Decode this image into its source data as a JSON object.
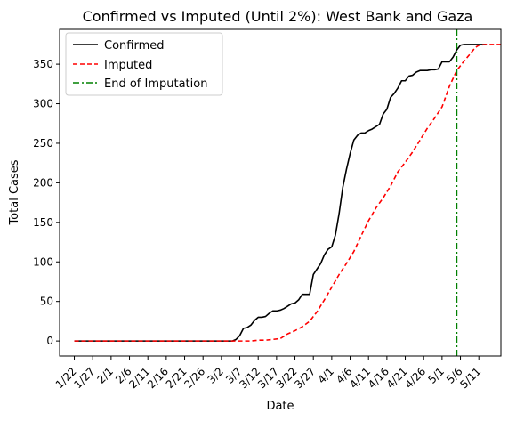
{
  "chart_data": {
    "type": "line",
    "title": "Confirmed vs Imputed (Until 2%): West Bank and Gaza",
    "xlabel": "Date",
    "ylabel": "Total Cases",
    "x_ticks": [
      "1/22",
      "1/27",
      "2/1",
      "2/6",
      "2/11",
      "2/16",
      "2/21",
      "2/26",
      "3/2",
      "3/7",
      "3/12",
      "3/17",
      "3/22",
      "3/27",
      "4/1",
      "4/6",
      "4/11",
      "4/16",
      "4/21",
      "4/26",
      "5/1",
      "5/6",
      "5/11"
    ],
    "y_ticks": [
      0,
      50,
      100,
      150,
      200,
      250,
      300,
      350
    ],
    "xlim_days": [
      -4,
      116
    ],
    "ylim": [
      -19,
      394
    ],
    "grid": false,
    "legend_position": "top-left",
    "end_of_imputation_day": 104,
    "end_of_imputation_date": "5/5",
    "series": [
      {
        "name": "Confirmed",
        "color": "#000000",
        "style": "solid",
        "points": [
          [
            0,
            0
          ],
          [
            10,
            0
          ],
          [
            20,
            0
          ],
          [
            30,
            0
          ],
          [
            40,
            0
          ],
          [
            43,
            0
          ],
          [
            44,
            2
          ],
          [
            45,
            7
          ],
          [
            46,
            16
          ],
          [
            47,
            17
          ],
          [
            48,
            20
          ],
          [
            49,
            26
          ],
          [
            50,
            30
          ],
          [
            51,
            30
          ],
          [
            52,
            31
          ],
          [
            53,
            35
          ],
          [
            54,
            38
          ],
          [
            55,
            38
          ],
          [
            56,
            39
          ],
          [
            57,
            41
          ],
          [
            58,
            44
          ],
          [
            59,
            47
          ],
          [
            60,
            48
          ],
          [
            61,
            52
          ],
          [
            62,
            59
          ],
          [
            63,
            59
          ],
          [
            64,
            59
          ],
          [
            65,
            84
          ],
          [
            66,
            91
          ],
          [
            67,
            98
          ],
          [
            68,
            109
          ],
          [
            69,
            116
          ],
          [
            70,
            119
          ],
          [
            71,
            134
          ],
          [
            72,
            161
          ],
          [
            73,
            194
          ],
          [
            74,
            217
          ],
          [
            75,
            237
          ],
          [
            76,
            254
          ],
          [
            77,
            260
          ],
          [
            78,
            263
          ],
          [
            79,
            263
          ],
          [
            80,
            266
          ],
          [
            81,
            268
          ],
          [
            82,
            271
          ],
          [
            83,
            274
          ],
          [
            84,
            287
          ],
          [
            85,
            293
          ],
          [
            86,
            308
          ],
          [
            87,
            313
          ],
          [
            88,
            320
          ],
          [
            89,
            329
          ],
          [
            90,
            329
          ],
          [
            91,
            335
          ],
          [
            92,
            336
          ],
          [
            93,
            340
          ],
          [
            94,
            342
          ],
          [
            95,
            342
          ],
          [
            96,
            342
          ],
          [
            97,
            343
          ],
          [
            98,
            343
          ],
          [
            99,
            344
          ],
          [
            100,
            353
          ],
          [
            101,
            353
          ],
          [
            102,
            353
          ],
          [
            103,
            359
          ],
          [
            104,
            368
          ],
          [
            105,
            374
          ],
          [
            106,
            375
          ],
          [
            108,
            375
          ],
          [
            110,
            375
          ],
          [
            112,
            375
          ]
        ]
      },
      {
        "name": "Imputed",
        "color": "#ff0000",
        "style": "dashed",
        "points": [
          [
            0,
            0
          ],
          [
            10,
            0
          ],
          [
            20,
            0
          ],
          [
            30,
            0
          ],
          [
            40,
            0
          ],
          [
            44,
            0
          ],
          [
            46,
            0
          ],
          [
            48,
            0
          ],
          [
            50,
            1
          ],
          [
            52,
            1
          ],
          [
            54,
            2
          ],
          [
            56,
            3
          ],
          [
            58,
            9
          ],
          [
            60,
            13
          ],
          [
            62,
            18
          ],
          [
            64,
            25
          ],
          [
            66,
            37
          ],
          [
            68,
            52
          ],
          [
            70,
            68
          ],
          [
            72,
            84
          ],
          [
            74,
            98
          ],
          [
            76,
            113
          ],
          [
            78,
            133
          ],
          [
            80,
            152
          ],
          [
            82,
            168
          ],
          [
            84,
            181
          ],
          [
            86,
            196
          ],
          [
            88,
            214
          ],
          [
            90,
            226
          ],
          [
            92,
            239
          ],
          [
            94,
            254
          ],
          [
            96,
            269
          ],
          [
            98,
            282
          ],
          [
            100,
            296
          ],
          [
            102,
            322
          ],
          [
            104,
            342
          ],
          [
            106,
            354
          ],
          [
            108,
            365
          ],
          [
            109,
            371
          ],
          [
            110,
            374
          ],
          [
            112,
            375
          ],
          [
            116,
            375
          ]
        ]
      }
    ],
    "annotations": [
      {
        "name": "End of Imputation",
        "color": "#008000",
        "style": "dash-dot",
        "x_date": "5/5"
      }
    ]
  }
}
